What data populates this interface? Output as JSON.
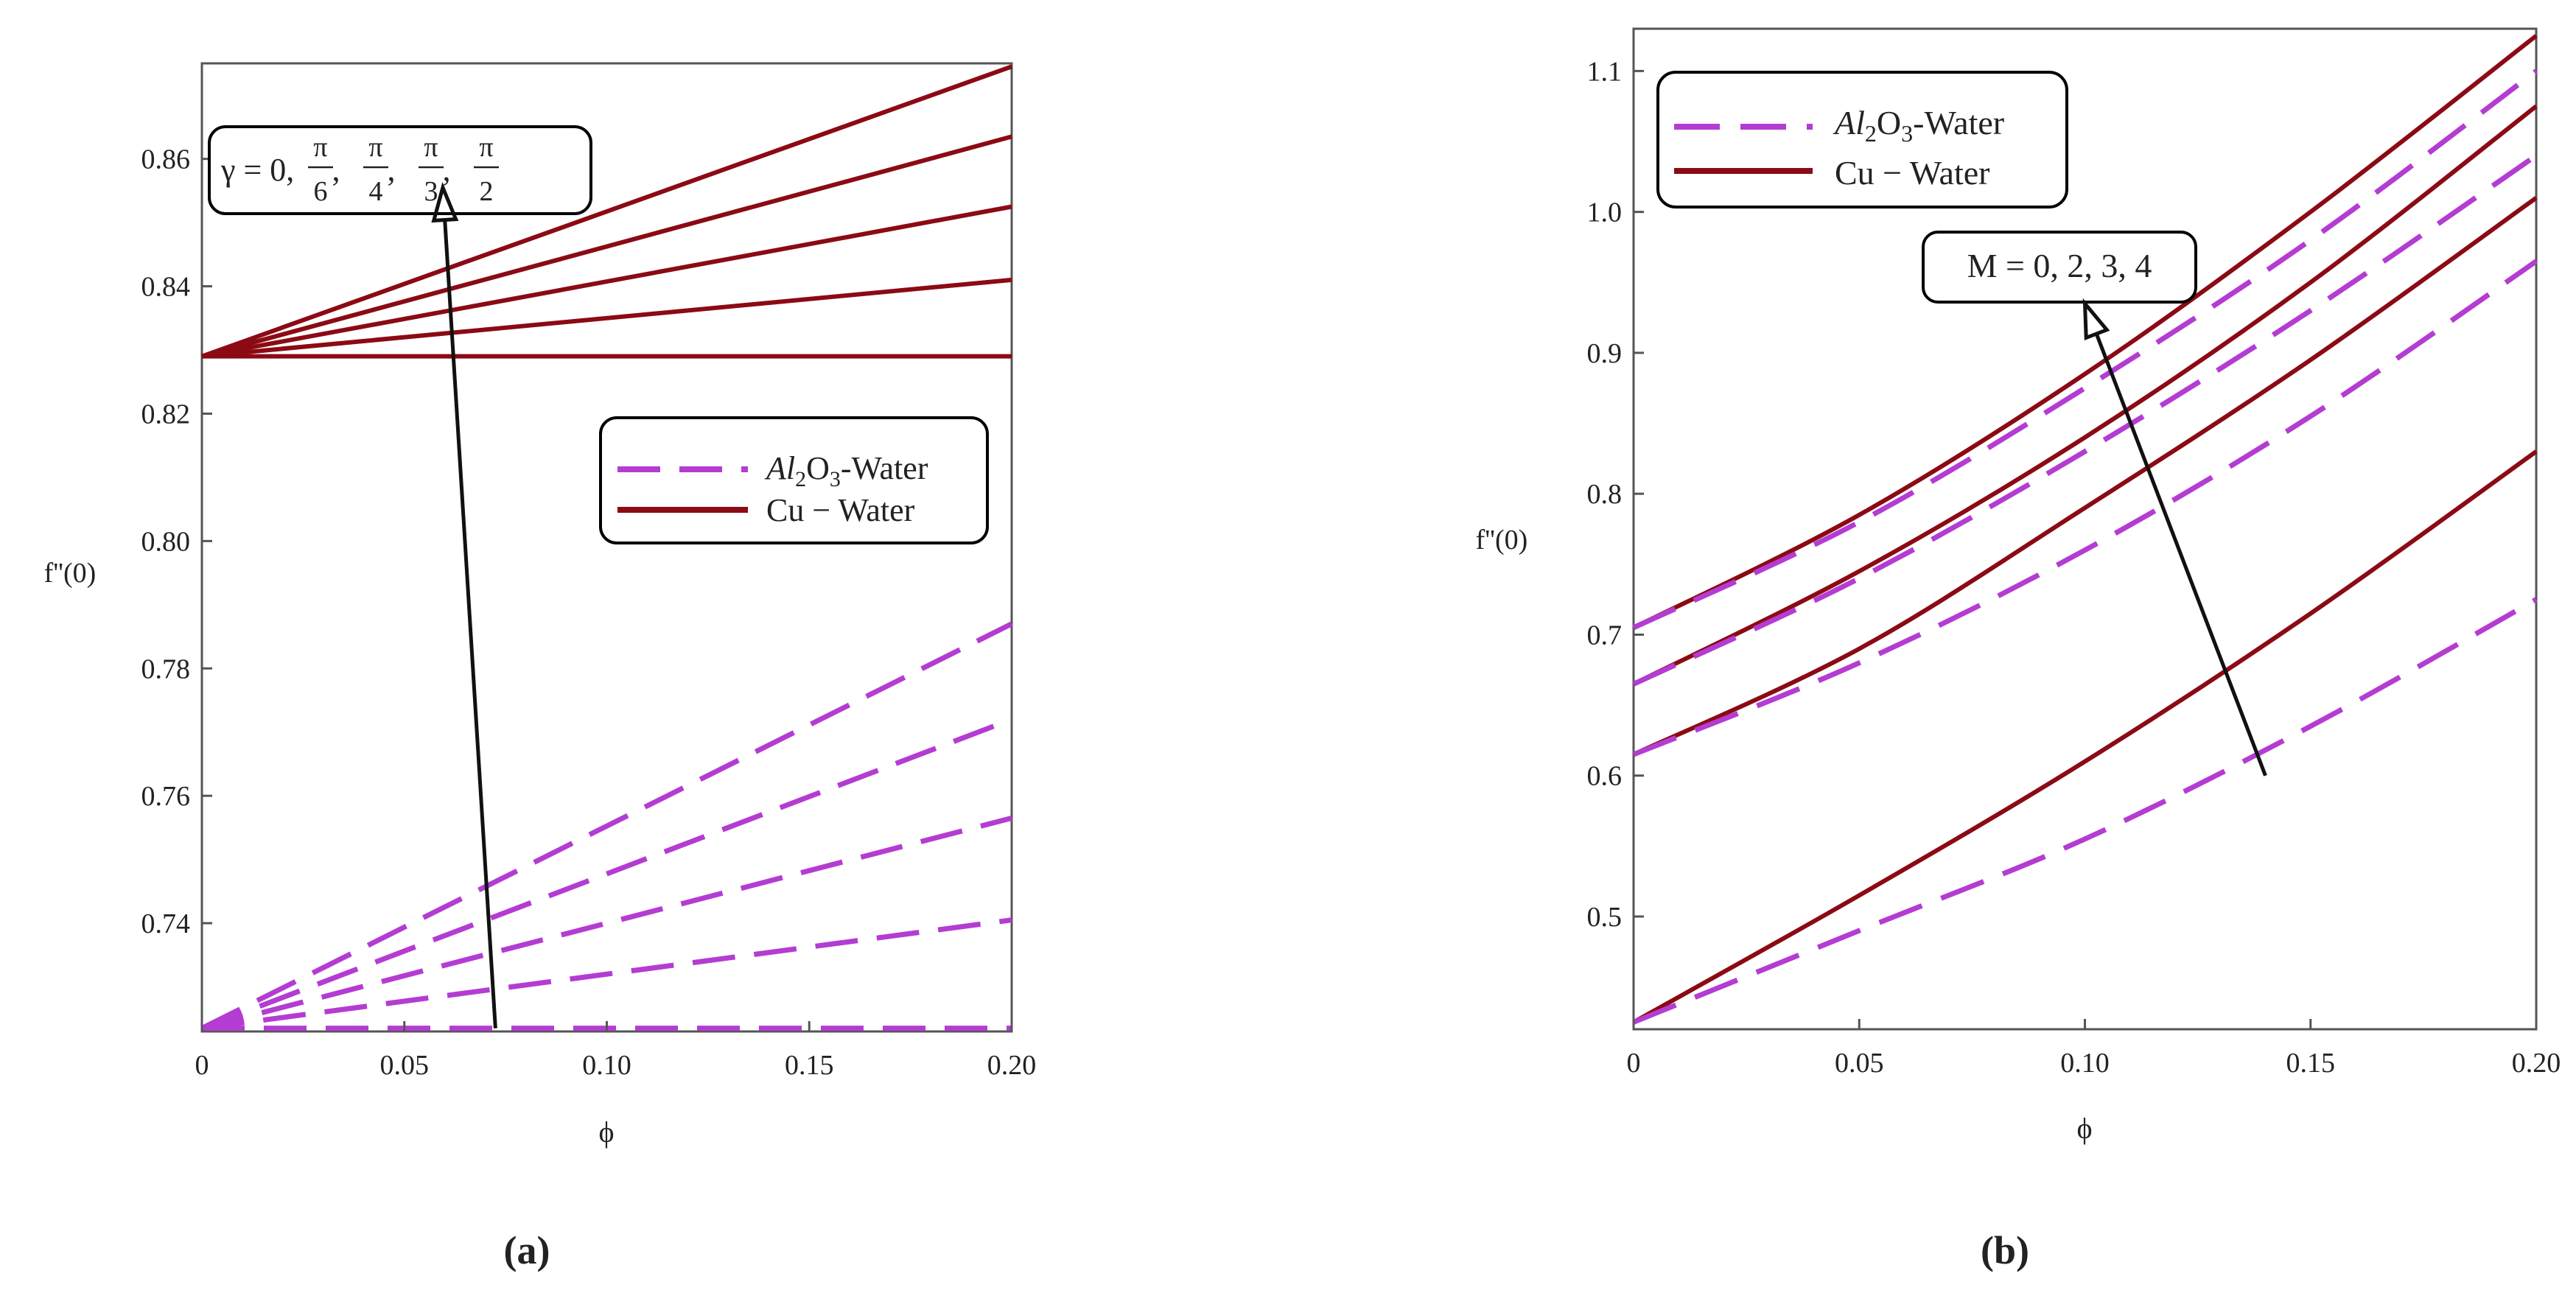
{
  "colors": {
    "cu": "#8b0a14",
    "al": "#b43cd2",
    "axis": "#555555",
    "text": "#222222"
  },
  "chart_data": [
    {
      "type": "line",
      "panel_label": "(a)",
      "xlabel": "ϕ",
      "ylabel": "f''(0)",
      "xlim": [
        0,
        0.2
      ],
      "ylim": [
        0.723,
        0.875
      ],
      "xticks": [
        0,
        0.05,
        0.1,
        0.15,
        0.2
      ],
      "xtick_labels": [
        "0",
        "0.05",
        "0.10",
        "0.15",
        "0.20"
      ],
      "yticks": [
        0.74,
        0.76,
        0.78,
        0.8,
        0.82,
        0.84,
        0.86
      ],
      "ytick_labels": [
        "0.74",
        "0.76",
        "0.78",
        "0.80",
        "0.82",
        "0.84",
        "0.86"
      ],
      "legend": {
        "placement": "center-right",
        "entries": [
          "Al2O3-Water",
          "Cu − Water"
        ]
      },
      "param_box": {
        "text": "γ = 0, π/6, π/4, π/3, π/2"
      },
      "arrow": {
        "from": [
          0.0725,
          0.7235
        ],
        "to": [
          0.0595,
          0.8555
        ]
      },
      "series": [
        {
          "name": "Cu − Water, γ = 0",
          "style": "solid",
          "x": [
            0,
            0.2
          ],
          "y": [
            0.829,
            0.829
          ]
        },
        {
          "name": "Cu − Water, γ = π/6",
          "style": "solid",
          "x": [
            0,
            0.2
          ],
          "y": [
            0.829,
            0.841
          ]
        },
        {
          "name": "Cu − Water, γ = π/4",
          "style": "solid",
          "x": [
            0,
            0.2
          ],
          "y": [
            0.829,
            0.8525
          ]
        },
        {
          "name": "Cu − Water, γ = π/3",
          "style": "solid",
          "x": [
            0,
            0.2
          ],
          "y": [
            0.829,
            0.8635
          ]
        },
        {
          "name": "Cu − Water, γ = π/2",
          "style": "solid",
          "x": [
            0,
            0.2
          ],
          "y": [
            0.829,
            0.8745
          ]
        },
        {
          "name": "Al2O3-Water, γ = 0",
          "style": "dashed",
          "x": [
            0,
            0.2
          ],
          "y": [
            0.7235,
            0.7235
          ]
        },
        {
          "name": "Al2O3-Water, γ = π/6",
          "style": "dashed",
          "x": [
            0,
            0.2
          ],
          "y": [
            0.7235,
            0.7405
          ]
        },
        {
          "name": "Al2O3-Water, γ = π/4",
          "style": "dashed",
          "x": [
            0,
            0.2
          ],
          "y": [
            0.7235,
            0.7565
          ]
        },
        {
          "name": "Al2O3-Water, γ = π/3",
          "style": "dashed",
          "x": [
            0,
            0.2
          ],
          "y": [
            0.7235,
            0.772
          ]
        },
        {
          "name": "Al2O3-Water, γ = π/2",
          "style": "dashed",
          "x": [
            0,
            0.2
          ],
          "y": [
            0.7235,
            0.787
          ]
        }
      ]
    },
    {
      "type": "line",
      "panel_label": "(b)",
      "xlabel": "ϕ",
      "ylabel": "f''(0)",
      "xlim": [
        0,
        0.2
      ],
      "ylim": [
        0.42,
        1.13
      ],
      "xticks": [
        0,
        0.05,
        0.1,
        0.15,
        0.2
      ],
      "xtick_labels": [
        "0",
        "0.05",
        "0.10",
        "0.15",
        "0.20"
      ],
      "yticks": [
        0.5,
        0.6,
        0.7,
        0.8,
        0.9,
        1.0,
        1.1
      ],
      "ytick_labels": [
        "0.5",
        "0.6",
        "0.7",
        "0.8",
        "0.9",
        "1.0",
        "1.1"
      ],
      "legend": {
        "placement": "top-left",
        "entries": [
          "Al2O3-Water",
          "Cu − Water"
        ]
      },
      "param_box": {
        "text": "M = 0, 2, 3, 4"
      },
      "arrow": {
        "from": [
          0.14,
          0.6
        ],
        "to": [
          0.1,
          0.935
        ]
      },
      "series": [
        {
          "name": "Cu − Water, M = 0",
          "style": "solid",
          "x": [
            0,
            0.05,
            0.1,
            0.15,
            0.2
          ],
          "y": [
            0.425,
            0.515,
            0.61,
            0.715,
            0.83
          ]
        },
        {
          "name": "Cu − Water, M = 2",
          "style": "solid",
          "x": [
            0,
            0.05,
            0.1,
            0.15,
            0.2
          ],
          "y": [
            0.615,
            0.69,
            0.79,
            0.895,
            1.01
          ]
        },
        {
          "name": "Cu − Water, M = 3",
          "style": "solid",
          "x": [
            0,
            0.05,
            0.1,
            0.15,
            0.2
          ],
          "y": [
            0.665,
            0.745,
            0.84,
            0.95,
            1.075
          ]
        },
        {
          "name": "Cu − Water, M = 4",
          "style": "solid",
          "x": [
            0,
            0.05,
            0.1,
            0.15,
            0.2
          ],
          "y": [
            0.705,
            0.785,
            0.885,
            1.0,
            1.125
          ]
        },
        {
          "name": "Al2O3-Water, M = 0",
          "style": "dashed",
          "x": [
            0,
            0.05,
            0.1,
            0.15,
            0.2
          ],
          "y": [
            0.425,
            0.49,
            0.555,
            0.635,
            0.725
          ]
        },
        {
          "name": "Al2O3-Water, M = 2",
          "style": "dashed",
          "x": [
            0,
            0.05,
            0.1,
            0.15,
            0.2
          ],
          "y": [
            0.615,
            0.68,
            0.76,
            0.855,
            0.965
          ]
        },
        {
          "name": "Al2O3-Water, M = 3",
          "style": "dashed",
          "x": [
            0,
            0.05,
            0.1,
            0.15,
            0.2
          ],
          "y": [
            0.665,
            0.74,
            0.83,
            0.93,
            1.04
          ]
        },
        {
          "name": "Al2O3-Water, M = 4",
          "style": "dashed",
          "x": [
            0,
            0.05,
            0.1,
            0.15,
            0.2
          ],
          "y": [
            0.705,
            0.78,
            0.875,
            0.98,
            1.1
          ]
        }
      ]
    }
  ]
}
